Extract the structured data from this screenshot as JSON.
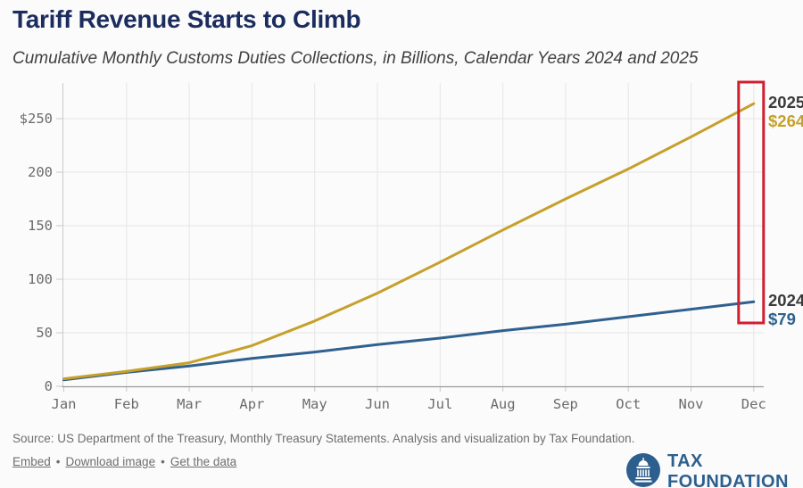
{
  "chart_data": {
    "type": "line",
    "title": "Tariff Revenue Starts to Climb",
    "subtitle": "Cumulative Monthly Customs Duties Collections, in Billions, Calendar Years 2024 and 2025",
    "xlabel": "",
    "ylabel": "",
    "ylim": [
      0,
      270
    ],
    "grid": true,
    "legend_position": "end-of-line-labels",
    "categories": [
      "Jan",
      "Feb",
      "Mar",
      "Apr",
      "May",
      "Jun",
      "Jul",
      "Aug",
      "Sep",
      "Oct",
      "Nov",
      "Dec"
    ],
    "series": [
      {
        "name": "2025",
        "color": "#c5a12b",
        "values": [
          7,
          14,
          22,
          38,
          61,
          87,
          116,
          146,
          175,
          203,
          233,
          264
        ]
      },
      {
        "name": "2024",
        "color": "#2f608e",
        "values": [
          6,
          13,
          19,
          26,
          32,
          39,
          45,
          52,
          58,
          65,
          72,
          79
        ]
      }
    ],
    "y_ticks": [
      {
        "value": 250,
        "label": "$250"
      },
      {
        "value": 200,
        "label": "200"
      },
      {
        "value": 150,
        "label": "150"
      },
      {
        "value": 100,
        "label": "100"
      },
      {
        "value": 50,
        "label": "50"
      },
      {
        "value": 0,
        "label": "0"
      }
    ],
    "annotations": [
      {
        "series": "2025",
        "label": "2025",
        "value_label": "$264"
      },
      {
        "series": "2024",
        "label": "2024",
        "value_label": "$79"
      }
    ],
    "highlight": {
      "type": "rect",
      "month": "Dec",
      "color": "#d02030"
    }
  },
  "footer": {
    "source": "Source: US Department of the Treasury, Monthly Treasury Statements. Analysis and visualization by Tax Foundation.",
    "separator": "•",
    "links": [
      "Embed",
      "Download image",
      "Get the data"
    ]
  },
  "logo": {
    "text": "TAX FOUNDATION",
    "icon": "capitol-dome-icon",
    "color": "#2d5f8e"
  },
  "colors": {
    "title": "#1b2c5e",
    "grid": "#e6e6e6",
    "axis_text": "#6b6b6b",
    "highlight": "#d02030"
  }
}
